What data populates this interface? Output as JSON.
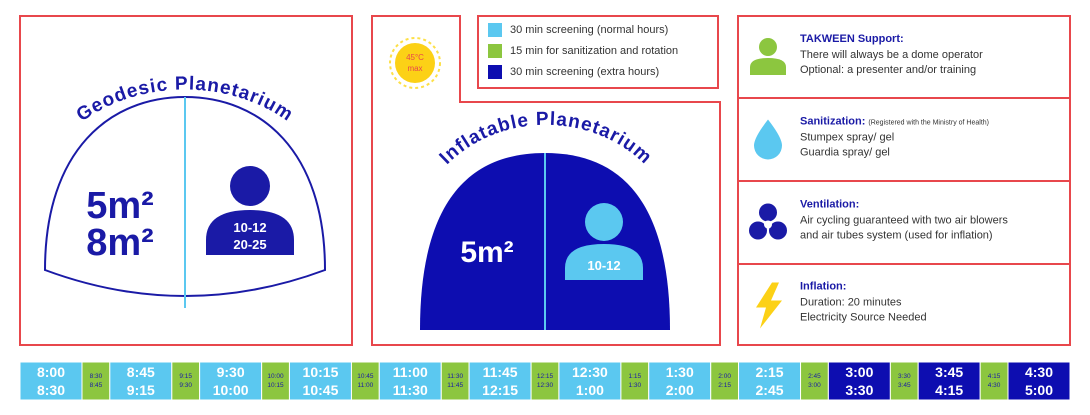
{
  "geodesic": {
    "title": "Geodesic Planetarium",
    "areas": [
      "5m²",
      "8m²"
    ],
    "ages": [
      "10-12",
      "20-25"
    ]
  },
  "inflatable": {
    "title": "Inflatable Planetarium",
    "areas": [
      "5m²"
    ],
    "ages": [
      "10-12"
    ],
    "temperature": [
      "45°C",
      "max"
    ]
  },
  "legend": [
    {
      "label": "30 min screening (normal hours)",
      "color": "#5bc8f0"
    },
    {
      "label": "15 min for sanitization and rotation",
      "color": "#8cc63f"
    },
    {
      "label": "30 min screening (extra hours)",
      "color": "#0d0db0"
    }
  ],
  "info": [
    {
      "title": "TAKWEEN Support:",
      "lines": [
        "There will always be a dome operator",
        "Optional: a presenter and/or training"
      ]
    },
    {
      "title": "Sanitization:",
      "note": "(Registered with the Ministry of Health)",
      "lines": [
        "Stumpex spray/ gel",
        "Guardia spray/ gel"
      ]
    },
    {
      "title": "Ventilation:",
      "lines": [
        "Air cycling guaranteed with two air blowers",
        "and air tubes system (used for inflation)"
      ]
    },
    {
      "title": "Inflation:",
      "lines": [
        "Duration: 20 minutes",
        "Electricity Source Needed"
      ]
    }
  ],
  "timeline": [
    {
      "start": "8:00",
      "end": "8:30",
      "color": "#5bc8f0"
    },
    {
      "start": "8:30",
      "end": "8:45",
      "color": "#8cc63f"
    },
    {
      "start": "8:45",
      "end": "9:15",
      "color": "#5bc8f0"
    },
    {
      "start": "9:15",
      "end": "9:30",
      "color": "#8cc63f"
    },
    {
      "start": "9:30",
      "end": "10:00",
      "color": "#5bc8f0"
    },
    {
      "start": "10:00",
      "end": "10:15",
      "color": "#8cc63f"
    },
    {
      "start": "10:15",
      "end": "10:45",
      "color": "#5bc8f0"
    },
    {
      "start": "10:45",
      "end": "11:00",
      "color": "#8cc63f"
    },
    {
      "start": "11:00",
      "end": "11:30",
      "color": "#5bc8f0"
    },
    {
      "start": "11:30",
      "end": "11:45",
      "color": "#8cc63f"
    },
    {
      "start": "11:45",
      "end": "12:15",
      "color": "#5bc8f0"
    },
    {
      "start": "12:15",
      "end": "12:30",
      "color": "#8cc63f"
    },
    {
      "start": "12:30",
      "end": "1:00",
      "color": "#5bc8f0"
    },
    {
      "start": "1:15",
      "end": "1:30",
      "color": "#8cc63f"
    },
    {
      "start": "1:30",
      "end": "2:00",
      "color": "#5bc8f0"
    },
    {
      "start": "2:00",
      "end": "2:15",
      "color": "#8cc63f"
    },
    {
      "start": "2:15",
      "end": "2:45",
      "color": "#5bc8f0"
    },
    {
      "start": "2:45",
      "end": "3:00",
      "color": "#8cc63f"
    },
    {
      "start": "3:00",
      "end": "3:30",
      "color": "#0d0db0"
    },
    {
      "start": "3:30",
      "end": "3:45",
      "color": "#8cc63f"
    },
    {
      "start": "3:45",
      "end": "4:15",
      "color": "#0d0db0"
    },
    {
      "start": "4:15",
      "end": "4:30",
      "color": "#8cc63f"
    },
    {
      "start": "4:30",
      "end": "5:00",
      "color": "#0d0db0"
    }
  ]
}
